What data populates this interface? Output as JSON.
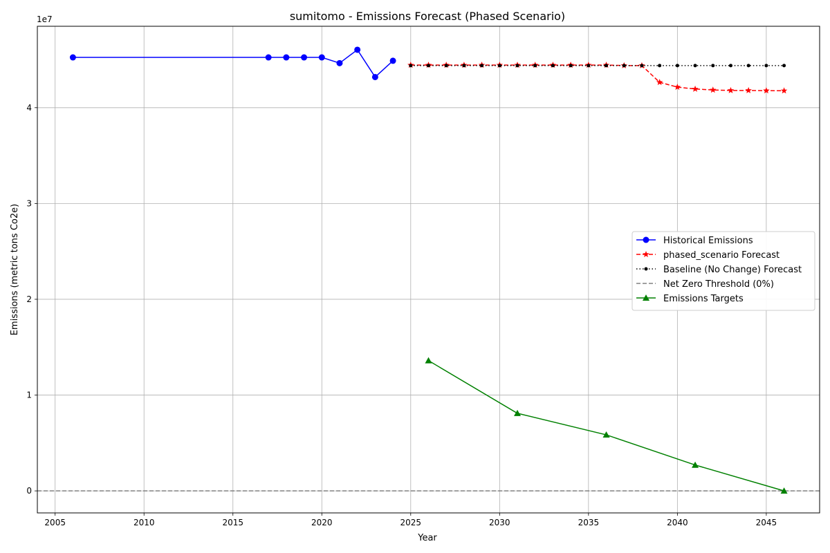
{
  "chart_data": {
    "type": "line",
    "title": "sumitomo - Emissions Forecast (Phased Scenario)",
    "xlabel": "Year",
    "ylabel": "Emissions (metric tons Co2e)",
    "y_offset_label": "1e7",
    "xlim": [
      2004,
      2048
    ],
    "ylim": [
      -2300000,
      48500000
    ],
    "x_ticks": [
      2005,
      2010,
      2015,
      2020,
      2025,
      2030,
      2035,
      2040,
      2045
    ],
    "y_ticks": [
      0,
      10000000,
      20000000,
      30000000,
      40000000
    ],
    "y_tick_labels": [
      "0",
      "1",
      "2",
      "3",
      "4"
    ],
    "grid": true,
    "legend_position": "center-right",
    "series": [
      {
        "name": "Historical Emissions",
        "color": "#0000ff",
        "linestyle": "solid",
        "marker": "circle",
        "x": [
          2006,
          2017,
          2018,
          2019,
          2020,
          2021,
          2022,
          2023,
          2024
        ],
        "y": [
          45250000,
          45250000,
          45250000,
          45250000,
          45250000,
          44650000,
          46050000,
          43200000,
          44900000
        ]
      },
      {
        "name": "phased_scenario Forecast",
        "color": "#ff0000",
        "linestyle": "dashed",
        "marker": "star",
        "x": [
          2025,
          2026,
          2027,
          2028,
          2029,
          2030,
          2031,
          2032,
          2033,
          2034,
          2035,
          2036,
          2037,
          2038,
          2039,
          2040,
          2041,
          2042,
          2043,
          2044,
          2045,
          2046
        ],
        "y": [
          44450000,
          44450000,
          44450000,
          44450000,
          44450000,
          44450000,
          44450000,
          44450000,
          44450000,
          44450000,
          44450000,
          44450000,
          44400000,
          44400000,
          42650000,
          42150000,
          41950000,
          41850000,
          41800000,
          41800000,
          41780000,
          41770000
        ]
      },
      {
        "name": "Baseline (No Change) Forecast",
        "color": "#000000",
        "linestyle": "dotted",
        "marker": "point",
        "x": [
          2025,
          2026,
          2027,
          2028,
          2029,
          2030,
          2031,
          2032,
          2033,
          2034,
          2035,
          2036,
          2037,
          2038,
          2039,
          2040,
          2041,
          2042,
          2043,
          2044,
          2045,
          2046
        ],
        "y": [
          44400000,
          44400000,
          44400000,
          44400000,
          44400000,
          44400000,
          44400000,
          44400000,
          44400000,
          44400000,
          44400000,
          44400000,
          44400000,
          44400000,
          44400000,
          44400000,
          44400000,
          44400000,
          44400000,
          44400000,
          44400000,
          44400000
        ]
      },
      {
        "name": "Net Zero Threshold (0%)",
        "color": "#808080",
        "linestyle": "dashed",
        "marker": "none",
        "x": [
          2004,
          2048
        ],
        "y": [
          0,
          0
        ]
      },
      {
        "name": "Emissions Targets",
        "color": "#008000",
        "linestyle": "solid",
        "marker": "triangle",
        "x": [
          2026,
          2031,
          2036,
          2041,
          2046
        ],
        "y": [
          13600000,
          8100000,
          5850000,
          2700000,
          0
        ]
      }
    ]
  }
}
